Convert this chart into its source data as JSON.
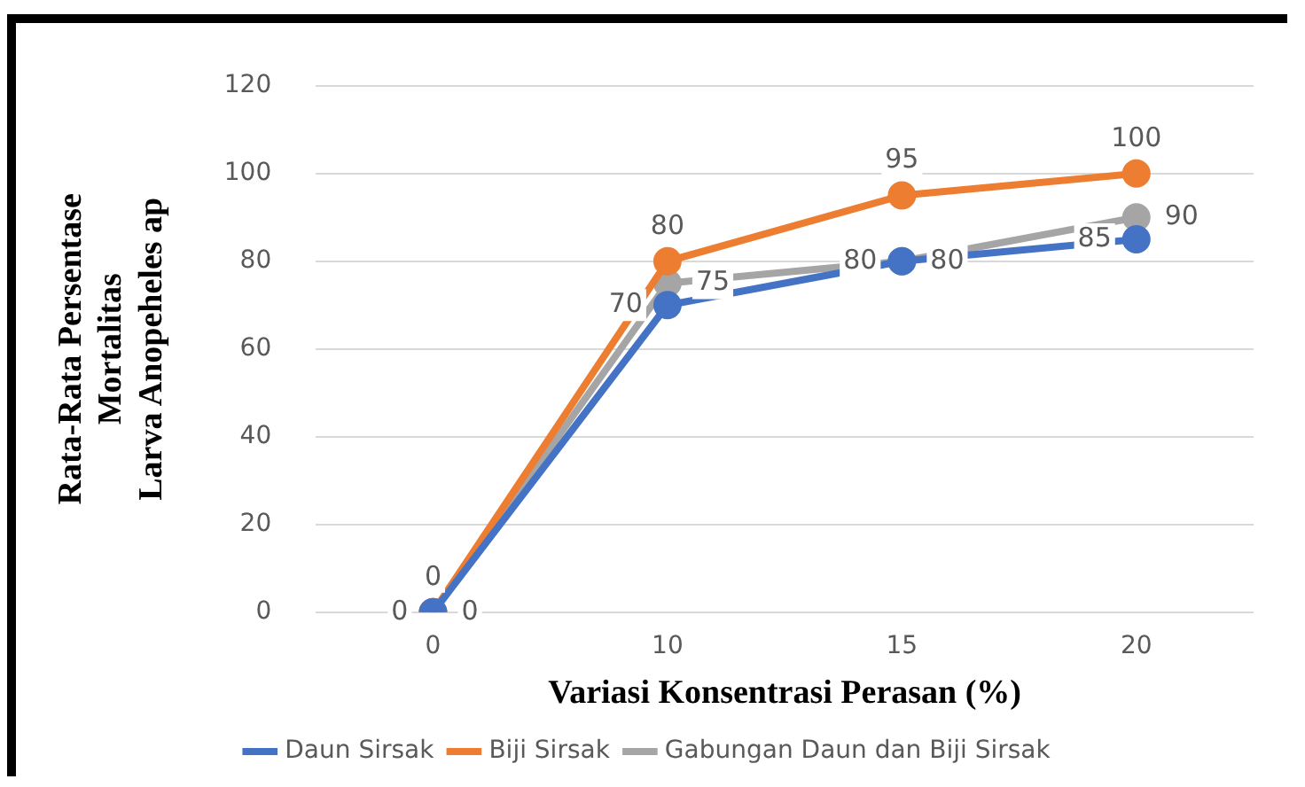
{
  "chart_data": {
    "type": "line",
    "xlabel": "Variasi Konsentrasi Perasan (%)",
    "ylabel": "Rata-Rata Persentase\nMortalitas\nLarva Anopeheles ap",
    "categories": [
      "0",
      "10",
      "15",
      "20"
    ],
    "series": [
      {
        "name": "Daun Sirsak",
        "color": "#4472c4",
        "values": [
          0,
          70,
          80,
          85
        ]
      },
      {
        "name": "Biji Sirsak",
        "color": "#ed7d31",
        "values": [
          0,
          80,
          95,
          100
        ]
      },
      {
        "name": "Gabungan Daun dan Biji Sirsak",
        "color": "#a5a5a5",
        "values": [
          0,
          75,
          80,
          90
        ]
      }
    ],
    "ylim": [
      0,
      120
    ],
    "yticks": [
      0,
      20,
      40,
      60,
      80,
      100,
      120
    ],
    "grid": "y",
    "legend": "bottom",
    "marker": "circle",
    "line_style": "solid",
    "data_labels": true
  }
}
